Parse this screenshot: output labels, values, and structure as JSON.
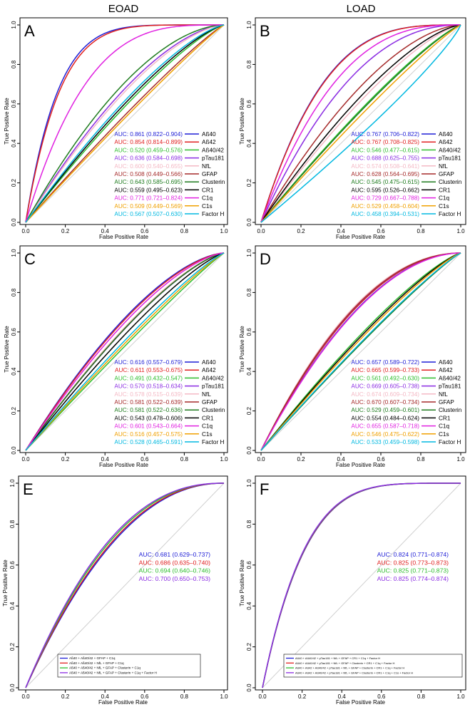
{
  "column_headers": [
    "EOAD",
    "LOAD"
  ],
  "axis_labels": {
    "x": "False Positive Rate",
    "y": "True Positive Rate"
  },
  "tick_labels": [
    "0.0",
    "0.2",
    "0.4",
    "0.6",
    "0.8",
    "1.0"
  ],
  "chart_data": [
    {
      "type": "line",
      "panel": "A",
      "axis_range": [
        0,
        1
      ],
      "legend_placement": "lower-right",
      "series": [
        {
          "name": "Aß40",
          "auc": "0.861",
          "ci": "(0.822–0.904)",
          "color": "#1f1fd6",
          "shape": 0.861
        },
        {
          "name": "Aß42",
          "auc": "0.854",
          "ci": "(0.814–0.899)",
          "color": "#e02020",
          "shape": 0.854
        },
        {
          "name": "Aß40/42",
          "auc": "0.520",
          "ci": "(0.459–0.576)",
          "color": "#2ebd2e",
          "shape": 0.56
        },
        {
          "name": "pTau181",
          "auc": "0.636",
          "ci": "(0.584–0.698)",
          "color": "#8a2be2",
          "shape": 0.62
        },
        {
          "name": "NfL",
          "auc": "0.600",
          "ci": "(0.540–0.655)",
          "color": "#f4b8c4",
          "shape": 0.61
        },
        {
          "name": "GFAP",
          "auc": "0.508",
          "ci": "(0.449–0.566)",
          "color": "#a52a2a",
          "shape": 0.53
        },
        {
          "name": "Clusterin",
          "auc": "0.643",
          "ci": "(0.585–0.695)",
          "color": "#1e7b1e",
          "shape": 0.64
        },
        {
          "name": "CR1",
          "auc": "0.559",
          "ci": "(0.495–0.623)",
          "color": "#000000",
          "shape": 0.57
        },
        {
          "name": "C1q",
          "auc": "0.771",
          "ci": "(0.721–0.824)",
          "color": "#e020e0",
          "shape": 0.771
        },
        {
          "name": "C1s",
          "auc": "0.509",
          "ci": "(0.449–0.569)",
          "color": "#f0a000",
          "shape": 0.52
        },
        {
          "name": "Factor H",
          "auc": "0.567",
          "ci": "(0.507–0.630)",
          "color": "#00b8e0",
          "shape": 0.58
        }
      ]
    },
    {
      "type": "line",
      "panel": "B",
      "axis_range": [
        0,
        1
      ],
      "legend_placement": "lower-right",
      "series": [
        {
          "name": "Aß40",
          "auc": "0.767",
          "ci": "(0.706–0.822)",
          "color": "#1f1fd6",
          "shape": 0.767
        },
        {
          "name": "Aß42",
          "auc": "0.767",
          "ci": "(0.708–0.825)",
          "color": "#e02020",
          "shape": 0.765
        },
        {
          "name": "Aß40/42",
          "auc": "0.546",
          "ci": "(0.477–0.615)",
          "color": "#2ebd2e",
          "shape": 0.55
        },
        {
          "name": "pTau181",
          "auc": "0.688",
          "ci": "(0.625–0.755)",
          "color": "#8a2be2",
          "shape": 0.688
        },
        {
          "name": "NfL",
          "auc": "0.574",
          "ci": "(0.508–0.641)",
          "color": "#f4b8c4",
          "shape": 0.58
        },
        {
          "name": "GFAP",
          "auc": "0.628",
          "ci": "(0.564–0.695)",
          "color": "#a52a2a",
          "shape": 0.628
        },
        {
          "name": "Clusterin",
          "auc": "0.545",
          "ci": "(0.475–0.615)",
          "color": "#1e7b1e",
          "shape": 0.545
        },
        {
          "name": "CR1",
          "auc": "0.595",
          "ci": "(0.526–0.662)",
          "color": "#000000",
          "shape": 0.595
        },
        {
          "name": "C1q",
          "auc": "0.729",
          "ci": "(0.667–0.788)",
          "color": "#e020e0",
          "shape": 0.729
        },
        {
          "name": "C1s",
          "auc": "0.529",
          "ci": "(0.458–0.604)",
          "color": "#f0a000",
          "shape": 0.53
        },
        {
          "name": "Factor H",
          "auc": "0.458",
          "ci": "(0.394–0.531)",
          "color": "#00b8e0",
          "shape": 0.458
        }
      ]
    },
    {
      "type": "line",
      "panel": "C",
      "axis_range": [
        0,
        1
      ],
      "legend_placement": "lower-right",
      "series": [
        {
          "name": "Aß40",
          "auc": "0.616",
          "ci": "(0.557–0.679)",
          "color": "#1f1fd6",
          "shape": 0.616
        },
        {
          "name": "Aß42",
          "auc": "0.611",
          "ci": "(0.553–0.675)",
          "color": "#e02020",
          "shape": 0.611
        },
        {
          "name": "Aß40/42",
          "auc": "0.491",
          "ci": "(0.432–0.547)",
          "color": "#2ebd2e",
          "shape": 0.52
        },
        {
          "name": "pTau181",
          "auc": "0.570",
          "ci": "(0.518–0.634)",
          "color": "#8a2be2",
          "shape": 0.58
        },
        {
          "name": "NfL",
          "auc": "0.578",
          "ci": "(0.515–0.639)",
          "color": "#f4b8c4",
          "shape": 0.585
        },
        {
          "name": "GFAP",
          "auc": "0.581",
          "ci": "(0.522–0.639)",
          "color": "#a52a2a",
          "shape": 0.581
        },
        {
          "name": "Clusterin",
          "auc": "0.581",
          "ci": "(0.522–0.636)",
          "color": "#1e7b1e",
          "shape": 0.581
        },
        {
          "name": "CR1",
          "auc": "0.543",
          "ci": "(0.478–0.606)",
          "color": "#000000",
          "shape": 0.56
        },
        {
          "name": "C1q",
          "auc": "0.601",
          "ci": "(0.543–0.664)",
          "color": "#e020e0",
          "shape": 0.601
        },
        {
          "name": "C1s",
          "auc": "0.516",
          "ci": "(0.457–0.575)",
          "color": "#f0a000",
          "shape": 0.53
        },
        {
          "name": "Factor H",
          "auc": "0.528",
          "ci": "(0.465–0.591)",
          "color": "#00b8e0",
          "shape": 0.54
        }
      ]
    },
    {
      "type": "line",
      "panel": "D",
      "axis_range": [
        0,
        1
      ],
      "legend_placement": "lower-right",
      "series": [
        {
          "name": "Aß40",
          "auc": "0.657",
          "ci": "(0.589–0.722)",
          "color": "#1f1fd6",
          "shape": 0.657
        },
        {
          "name": "Aß42",
          "auc": "0.665",
          "ci": "(0.599–0.733)",
          "color": "#e02020",
          "shape": 0.665
        },
        {
          "name": "Aß40/42",
          "auc": "0.561",
          "ci": "(0.492–0.630)",
          "color": "#2ebd2e",
          "shape": 0.561
        },
        {
          "name": "pTau181",
          "auc": "0.669",
          "ci": "(0.605–0.738)",
          "color": "#8a2be2",
          "shape": 0.669
        },
        {
          "name": "NfL",
          "auc": "0.674",
          "ci": "(0.609–0.734)",
          "color": "#f4b8c4",
          "shape": 0.674
        },
        {
          "name": "GFAP",
          "auc": "0.670",
          "ci": "(0.607–0.734)",
          "color": "#a52a2a",
          "shape": 0.67
        },
        {
          "name": "Clusterin",
          "auc": "0.529",
          "ci": "(0.459–0.601)",
          "color": "#1e7b1e",
          "shape": 0.529
        },
        {
          "name": "CR1",
          "auc": "0.554",
          "ci": "(0.484–0.624)",
          "color": "#000000",
          "shape": 0.554
        },
        {
          "name": "C1q",
          "auc": "0.655",
          "ci": "(0.587–0.718)",
          "color": "#e020e0",
          "shape": 0.655
        },
        {
          "name": "C1s",
          "auc": "0.546",
          "ci": "(0.475–0.622)",
          "color": "#f0a000",
          "shape": 0.546
        },
        {
          "name": "Factor H",
          "auc": "0.533",
          "ci": "(0.459–0.598)",
          "color": "#00b8e0",
          "shape": 0.533
        }
      ]
    },
    {
      "type": "line",
      "panel": "E",
      "axis_range": [
        0,
        1
      ],
      "legend_placement": "bottom-left",
      "series": [
        {
          "name": "Aß40 + Aß40/42 + GFAP + C1q",
          "auc": "0.681",
          "ci": "(0.629–0.737)",
          "color": "#1f1fd6",
          "shape": 0.681
        },
        {
          "name": "Aß40 + Aß40/42 + NfL + GFAP + C1q",
          "auc": "0.686",
          "ci": "(0.635–0.740)",
          "color": "#e02020",
          "shape": 0.686
        },
        {
          "name": "Aß40 + Aß40/42 + NfL + GFAP + Clusterin + C1q",
          "auc": "0.694",
          "ci": "(0.640–0.746)",
          "color": "#2ebd2e",
          "shape": 0.694
        },
        {
          "name": "Aß40 + Aß40/42 + NfL + GFAP + Clusterin + C1q + Factor H",
          "auc": "0.700",
          "ci": "(0.650–0.753)",
          "color": "#8a2be2",
          "shape": 0.7
        }
      ]
    },
    {
      "type": "line",
      "panel": "F",
      "axis_range": [
        0,
        1
      ],
      "legend_placement": "bottom-right",
      "series": [
        {
          "name": "Aß40 + Aß40/42 + pTau181 + NfL + GFAP + CR1 + C1q + Factor H",
          "auc": "0.824",
          "ci": "(0.771–0.874)",
          "color": "#1f1fd6",
          "shape": 0.824
        },
        {
          "name": "Aß40 + Aß40/42 + pTau181 + NfL + GFAP + Clusterin + CR1 + C1q + Factor H",
          "auc": "0.825",
          "ci": "(0.773–0.873)",
          "color": "#e02020",
          "shape": 0.825
        },
        {
          "name": "Aß40 + Aß42 + Aß40/42 + pTau181 + NfL + GFAP + Clusterin + CR1 + C1q + Factor H",
          "auc": "0.825",
          "ci": "(0.771–0.873)",
          "color": "#2ebd2e",
          "shape": 0.826
        },
        {
          "name": "Aß40 + Aß42 + Aß40/42 + pTau181 + NfL + GFAP + Clusterin + CR1 + C1q + C1s + Factor H",
          "auc": "0.825",
          "ci": "(0.774–0.874)",
          "color": "#8a2be2",
          "shape": 0.827
        }
      ]
    }
  ]
}
